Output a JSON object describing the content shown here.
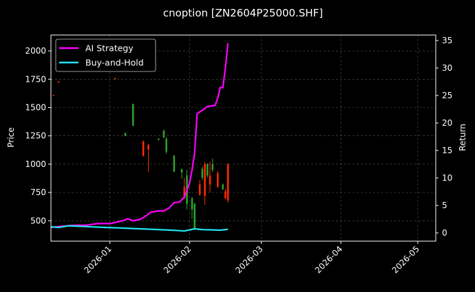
{
  "chart_data": {
    "type": "line",
    "title": "cnoption [ZN2604P25000.SHF]",
    "xlabel": "",
    "ylabel": "Price",
    "y2label": "Return",
    "xlim": [
      "2025-12-09",
      "2026-05-08"
    ],
    "ylim": [
      320,
      2140
    ],
    "y2lim": [
      -1.5,
      36
    ],
    "grid": true,
    "legend_position": "top-left",
    "x_tick_labels": [
      "2026-01",
      "2026-02",
      "2026-03",
      "2026-04",
      "2026-05"
    ],
    "y_tick_values": [
      500,
      750,
      1000,
      1250,
      1500,
      1750,
      2000
    ],
    "y2_tick_values": [
      0,
      5,
      10,
      15,
      20,
      25,
      30,
      35
    ],
    "colors": {
      "up": "#2ca02c",
      "down": "#ff2a00",
      "ai": "#ff00ff",
      "hold": "#22e5f5",
      "grid": "#555555"
    },
    "candles": [
      {
        "date": "2025-12-10",
        "open": 1610,
        "close": 1605,
        "high": 1612,
        "low": 1600
      },
      {
        "date": "2025-12-12",
        "open": 1730,
        "close": 1722,
        "high": 1735,
        "low": 1718
      },
      {
        "date": "2026-01-03",
        "open": 1760,
        "close": 1752,
        "high": 1763,
        "low": 1748
      },
      {
        "date": "2026-01-07",
        "open": 1250,
        "close": 1275,
        "high": 1280,
        "low": 1245
      },
      {
        "date": "2026-01-10",
        "open": 1340,
        "close": 1530,
        "high": 1535,
        "low": 1335
      },
      {
        "date": "2026-01-14",
        "open": 1200,
        "close": 1075,
        "high": 1210,
        "low": 1065
      },
      {
        "date": "2026-01-16",
        "open": 1170,
        "close": 1130,
        "high": 1180,
        "low": 930
      },
      {
        "date": "2026-01-20",
        "open": 1215,
        "close": 1225,
        "high": 1230,
        "low": 1210
      },
      {
        "date": "2026-01-22",
        "open": 1235,
        "close": 1295,
        "high": 1305,
        "low": 1230
      },
      {
        "date": "2026-01-23",
        "open": 1110,
        "close": 1225,
        "high": 1240,
        "low": 1090
      },
      {
        "date": "2026-01-26",
        "open": 935,
        "close": 1075,
        "high": 1080,
        "low": 930
      },
      {
        "date": "2026-01-29",
        "open": 925,
        "close": 955,
        "high": 960,
        "low": 870
      },
      {
        "date": "2026-01-30",
        "open": 800,
        "close": 700,
        "high": 880,
        "low": 690
      },
      {
        "date": "2026-01-31",
        "open": 650,
        "close": 900,
        "high": 950,
        "low": 600
      },
      {
        "date": "2026-02-02",
        "open": 600,
        "close": 700,
        "high": 710,
        "low": 520
      },
      {
        "date": "2026-02-03",
        "open": 430,
        "close": 650,
        "high": 660,
        "low": 420
      },
      {
        "date": "2026-02-05",
        "open": 820,
        "close": 730,
        "high": 860,
        "low": 720
      },
      {
        "date": "2026-02-06",
        "open": 880,
        "close": 960,
        "high": 980,
        "low": 860
      },
      {
        "date": "2026-02-07",
        "open": 1000,
        "close": 720,
        "high": 1020,
        "low": 640
      },
      {
        "date": "2026-02-08",
        "open": 900,
        "close": 1000,
        "high": 1010,
        "low": 880
      },
      {
        "date": "2026-02-09",
        "open": 900,
        "close": 820,
        "high": 1020,
        "low": 750
      },
      {
        "date": "2026-02-10",
        "open": 950,
        "close": 1000,
        "high": 1050,
        "low": 930
      },
      {
        "date": "2026-02-12",
        "open": 920,
        "close": 800,
        "high": 940,
        "low": 790
      },
      {
        "date": "2026-02-14",
        "open": 780,
        "close": 820,
        "high": 830,
        "low": 770
      },
      {
        "date": "2026-02-15",
        "open": 760,
        "close": 700,
        "high": 780,
        "low": 690
      },
      {
        "date": "2026-02-16",
        "open": 1000,
        "close": 680,
        "high": 1010,
        "low": 660
      }
    ],
    "series": [
      {
        "name": "AI Strategy",
        "axis": "right",
        "points": [
          [
            "2025-12-09",
            1.0
          ],
          [
            "2025-12-13",
            1.2
          ],
          [
            "2025-12-18",
            1.4
          ],
          [
            "2025-12-23",
            1.4
          ],
          [
            "2025-12-27",
            1.7
          ],
          [
            "2026-01-01",
            1.7
          ],
          [
            "2026-01-06",
            2.2
          ],
          [
            "2026-01-08",
            2.6
          ],
          [
            "2026-01-10",
            2.2
          ],
          [
            "2026-01-13",
            2.5
          ],
          [
            "2026-01-15",
            3.1
          ],
          [
            "2026-01-17",
            3.8
          ],
          [
            "2026-01-20",
            4.0
          ],
          [
            "2026-01-22",
            4.0
          ],
          [
            "2026-01-24",
            4.5
          ],
          [
            "2026-01-26",
            5.5
          ],
          [
            "2026-01-28",
            5.6
          ],
          [
            "2026-01-30",
            6.5
          ],
          [
            "2026-02-01",
            9.0
          ],
          [
            "2026-02-02",
            11.5
          ],
          [
            "2026-02-03",
            14.5
          ],
          [
            "2026-02-04",
            21.7
          ],
          [
            "2026-02-06",
            22.3
          ],
          [
            "2026-02-08",
            23.0
          ],
          [
            "2026-02-11",
            23.2
          ],
          [
            "2026-02-12",
            24.5
          ],
          [
            "2026-02-13",
            26.5
          ],
          [
            "2026-02-14",
            26.4
          ],
          [
            "2026-02-15",
            30.0
          ],
          [
            "2026-02-16",
            34.5
          ]
        ]
      },
      {
        "name": "Buy-and-Hold",
        "axis": "right",
        "points": [
          [
            "2025-12-09",
            1.1
          ],
          [
            "2025-12-12",
            1.0
          ],
          [
            "2025-12-16",
            1.3
          ],
          [
            "2025-12-20",
            1.2
          ],
          [
            "2025-12-25",
            1.1
          ],
          [
            "2025-12-30",
            1.0
          ],
          [
            "2026-01-05",
            0.9
          ],
          [
            "2026-01-10",
            0.8
          ],
          [
            "2026-01-15",
            0.7
          ],
          [
            "2026-01-20",
            0.6
          ],
          [
            "2026-01-25",
            0.5
          ],
          [
            "2026-01-30",
            0.35
          ],
          [
            "2026-02-03",
            0.75
          ],
          [
            "2026-02-06",
            0.6
          ],
          [
            "2026-02-10",
            0.55
          ],
          [
            "2026-02-13",
            0.5
          ],
          [
            "2026-02-16",
            0.65
          ]
        ]
      }
    ]
  }
}
